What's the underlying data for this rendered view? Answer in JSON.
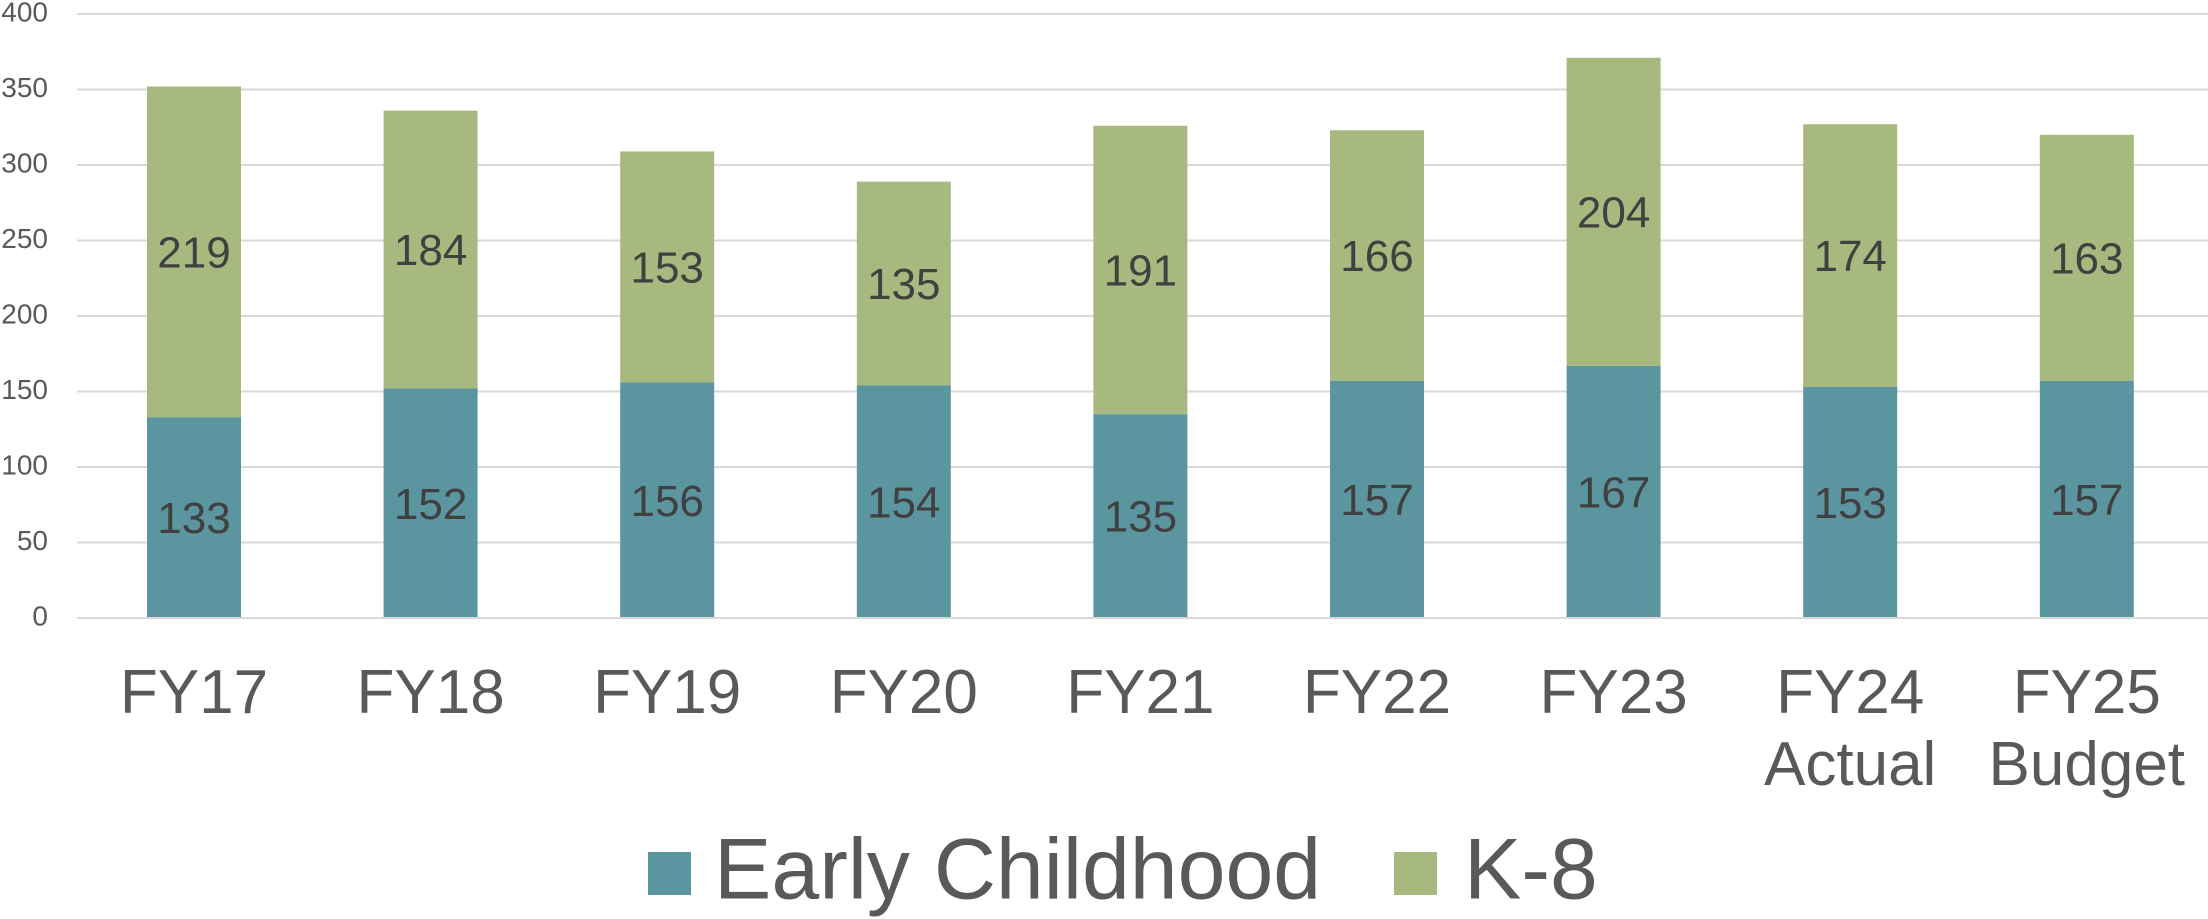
{
  "chart_data": {
    "type": "bar",
    "stacked": true,
    "categories": [
      "FY17",
      "FY18",
      "FY19",
      "FY20",
      "FY21",
      "FY22",
      "FY23",
      "FY24 Actual",
      "FY25 Budget"
    ],
    "series": [
      {
        "name": "Early Childhood",
        "color": "#5b96a0",
        "values": [
          133,
          152,
          156,
          154,
          135,
          157,
          167,
          153,
          157
        ]
      },
      {
        "name": "K-8",
        "color": "#a8b97f",
        "values": [
          219,
          184,
          153,
          135,
          191,
          166,
          204,
          174,
          163
        ]
      }
    ],
    "ylim": [
      0,
      400
    ],
    "yticks": [
      0,
      50,
      100,
      150,
      200,
      250,
      300,
      350,
      400
    ],
    "grid": true,
    "legend": "bottom"
  }
}
